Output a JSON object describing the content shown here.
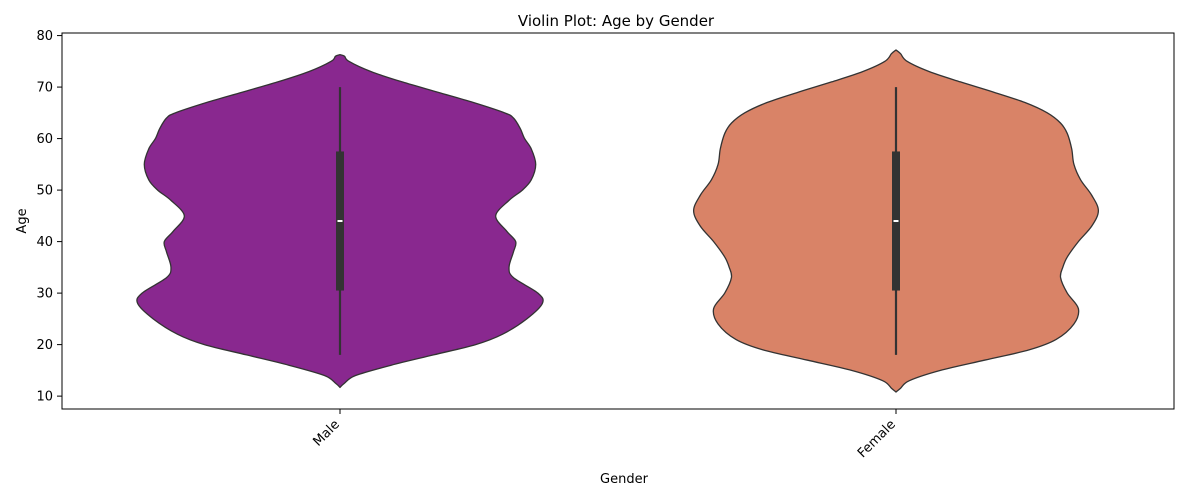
{
  "chart_data": {
    "type": "violin",
    "title": "Violin Plot: Age by Gender",
    "xlabel": "Gender",
    "ylabel": "Age",
    "ylim": [
      7.5,
      80.5
    ],
    "yticks": [
      10,
      20,
      30,
      40,
      50,
      60,
      70,
      80
    ],
    "categories": [
      "Male",
      "Female"
    ],
    "series": [
      {
        "category": "Male",
        "color": "#89288F",
        "min": 18,
        "q1": 30.5,
        "median": 44,
        "q3": 57.5,
        "max": 70,
        "density": [
          [
            11.7,
            0.0
          ],
          [
            12.5,
            0.02
          ],
          [
            14,
            0.07
          ],
          [
            16,
            0.23
          ],
          [
            18,
            0.42
          ],
          [
            20,
            0.61
          ],
          [
            22,
            0.73
          ],
          [
            25,
            0.84
          ],
          [
            28,
            0.91
          ],
          [
            30,
            0.89
          ],
          [
            33,
            0.78
          ],
          [
            35,
            0.76
          ],
          [
            38,
            0.78
          ],
          [
            40,
            0.79
          ],
          [
            42,
            0.75
          ],
          [
            45,
            0.7
          ],
          [
            48,
            0.76
          ],
          [
            50,
            0.82
          ],
          [
            52,
            0.86
          ],
          [
            55,
            0.88
          ],
          [
            58,
            0.86
          ],
          [
            60,
            0.83
          ],
          [
            62,
            0.81
          ],
          [
            64,
            0.78
          ],
          [
            65,
            0.74
          ],
          [
            67,
            0.6
          ],
          [
            69,
            0.44
          ],
          [
            71,
            0.28
          ],
          [
            73,
            0.14
          ],
          [
            75,
            0.04
          ],
          [
            76,
            0.02
          ],
          [
            76.3,
            0.0
          ]
        ]
      },
      {
        "category": "Female",
        "color": "#D98367",
        "min": 18,
        "q1": 30.5,
        "median": 44,
        "q3": 57.5,
        "max": 70,
        "density": [
          [
            10.8,
            0.0
          ],
          [
            11.5,
            0.02
          ],
          [
            13,
            0.06
          ],
          [
            15,
            0.2
          ],
          [
            17,
            0.4
          ],
          [
            19,
            0.6
          ],
          [
            21,
            0.72
          ],
          [
            24,
            0.8
          ],
          [
            27,
            0.82
          ],
          [
            30,
            0.77
          ],
          [
            33,
            0.74
          ],
          [
            35,
            0.75
          ],
          [
            37,
            0.77
          ],
          [
            40,
            0.82
          ],
          [
            43,
            0.88
          ],
          [
            46,
            0.91
          ],
          [
            49,
            0.88
          ],
          [
            52,
            0.83
          ],
          [
            55,
            0.8
          ],
          [
            58,
            0.79
          ],
          [
            61,
            0.77
          ],
          [
            63,
            0.74
          ],
          [
            65,
            0.68
          ],
          [
            67,
            0.58
          ],
          [
            69,
            0.44
          ],
          [
            71,
            0.29
          ],
          [
            73,
            0.15
          ],
          [
            75,
            0.05
          ],
          [
            76.5,
            0.02
          ],
          [
            77.2,
            0.0
          ]
        ]
      }
    ],
    "grid": false,
    "legend": "none"
  }
}
